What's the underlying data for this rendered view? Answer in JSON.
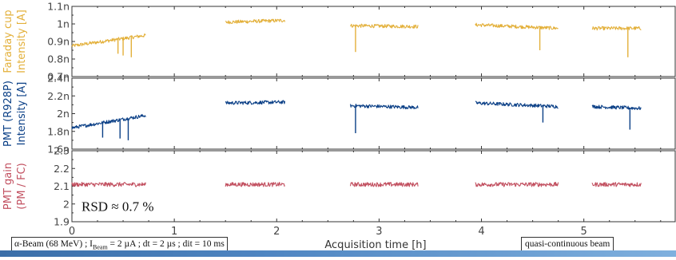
{
  "chart_data": [
    {
      "type": "line",
      "ylabel_lines": [
        "Faraday cup",
        "Intensity [A]"
      ],
      "yticks": [
        "0.7n",
        "0.8n",
        "0.9n",
        "1n",
        "1.1n"
      ],
      "ytick_values": [
        0.7,
        0.8,
        0.9,
        1.0,
        1.1
      ],
      "ylim": [
        0.7,
        1.1
      ],
      "color": "#e3b03a",
      "segments": [
        {
          "x_start": 0.0,
          "x_end": 0.72,
          "y_start": 0.875,
          "y_end": 0.935,
          "noise": 0.01
        },
        {
          "x_start": 1.5,
          "x_end": 2.08,
          "y_start": 1.01,
          "y_end": 1.02,
          "noise": 0.01
        },
        {
          "x_start": 2.72,
          "x_end": 3.38,
          "y_start": 0.99,
          "y_end": 0.985,
          "noise": 0.01
        },
        {
          "x_start": 3.94,
          "x_end": 4.75,
          "y_start": 0.995,
          "y_end": 0.975,
          "noise": 0.01
        },
        {
          "x_start": 5.08,
          "x_end": 5.56,
          "y_start": 0.975,
          "y_end": 0.975,
          "noise": 0.01
        }
      ],
      "dips": [
        [
          0.45,
          0.83
        ],
        [
          0.5,
          0.82
        ],
        [
          0.58,
          0.81
        ],
        [
          2.77,
          0.84
        ],
        [
          4.57,
          0.85
        ],
        [
          5.43,
          0.81
        ]
      ]
    },
    {
      "type": "line",
      "ylabel_lines": [
        "PMT (R928P)",
        "Intensity [A]"
      ],
      "yticks": [
        "1.6n",
        "1.8n",
        "2n",
        "2.2n",
        "2.4n"
      ],
      "ytick_values": [
        1.6,
        1.8,
        2.0,
        2.2,
        2.4
      ],
      "ylim": [
        1.6,
        2.4
      ],
      "color": "#0a3f86",
      "segments": [
        {
          "x_start": 0.0,
          "x_end": 0.72,
          "y_start": 1.84,
          "y_end": 1.98,
          "noise": 0.02
        },
        {
          "x_start": 1.5,
          "x_end": 2.08,
          "y_start": 2.12,
          "y_end": 2.13,
          "noise": 0.02
        },
        {
          "x_start": 2.72,
          "x_end": 3.38,
          "y_start": 2.09,
          "y_end": 2.07,
          "noise": 0.02
        },
        {
          "x_start": 3.94,
          "x_end": 4.75,
          "y_start": 2.12,
          "y_end": 2.08,
          "noise": 0.02
        },
        {
          "x_start": 5.08,
          "x_end": 5.56,
          "y_start": 2.08,
          "y_end": 2.06,
          "noise": 0.02
        }
      ],
      "dips": [
        [
          0.3,
          1.73
        ],
        [
          0.47,
          1.72
        ],
        [
          0.55,
          1.7
        ],
        [
          2.77,
          1.78
        ],
        [
          4.6,
          1.9
        ],
        [
          5.45,
          1.82
        ]
      ]
    },
    {
      "type": "line",
      "ylabel_lines": [
        "PMT gain",
        "(PM / FC)"
      ],
      "yticks": [
        "1.9",
        "2",
        "2.1",
        "2.2",
        "2.3"
      ],
      "ytick_values": [
        1.9,
        2.0,
        2.1,
        2.2,
        2.3
      ],
      "ylim": [
        1.9,
        2.3
      ],
      "color": "#c25060",
      "segments": [
        {
          "x_start": 0.0,
          "x_end": 0.72,
          "y_start": 2.11,
          "y_end": 2.11,
          "noise": 0.012
        },
        {
          "x_start": 1.5,
          "x_end": 2.08,
          "y_start": 2.11,
          "y_end": 2.11,
          "noise": 0.012
        },
        {
          "x_start": 2.72,
          "x_end": 3.38,
          "y_start": 2.11,
          "y_end": 2.11,
          "noise": 0.012
        },
        {
          "x_start": 3.94,
          "x_end": 4.75,
          "y_start": 2.11,
          "y_end": 2.11,
          "noise": 0.012
        },
        {
          "x_start": 5.08,
          "x_end": 5.56,
          "y_start": 2.11,
          "y_end": 2.11,
          "noise": 0.012
        }
      ],
      "dips": [],
      "annotation": "RSD ≈ 0.7 %"
    }
  ],
  "x_axis": {
    "label": "Acquisition time [h]",
    "ticks": [
      "0",
      "1",
      "2",
      "3",
      "4",
      "5"
    ],
    "tick_values": [
      0,
      1,
      2,
      3,
      4,
      5
    ],
    "xlim": [
      0,
      5.9
    ]
  },
  "footer": {
    "beam_prefix": "α-Beam (68 MeV) ; I",
    "beam_sub": "Beam",
    "beam_suffix": " = 2 µA ; dt = 2 µs ; dit = 10 ms",
    "mode_label": "quasi-continuous beam"
  }
}
